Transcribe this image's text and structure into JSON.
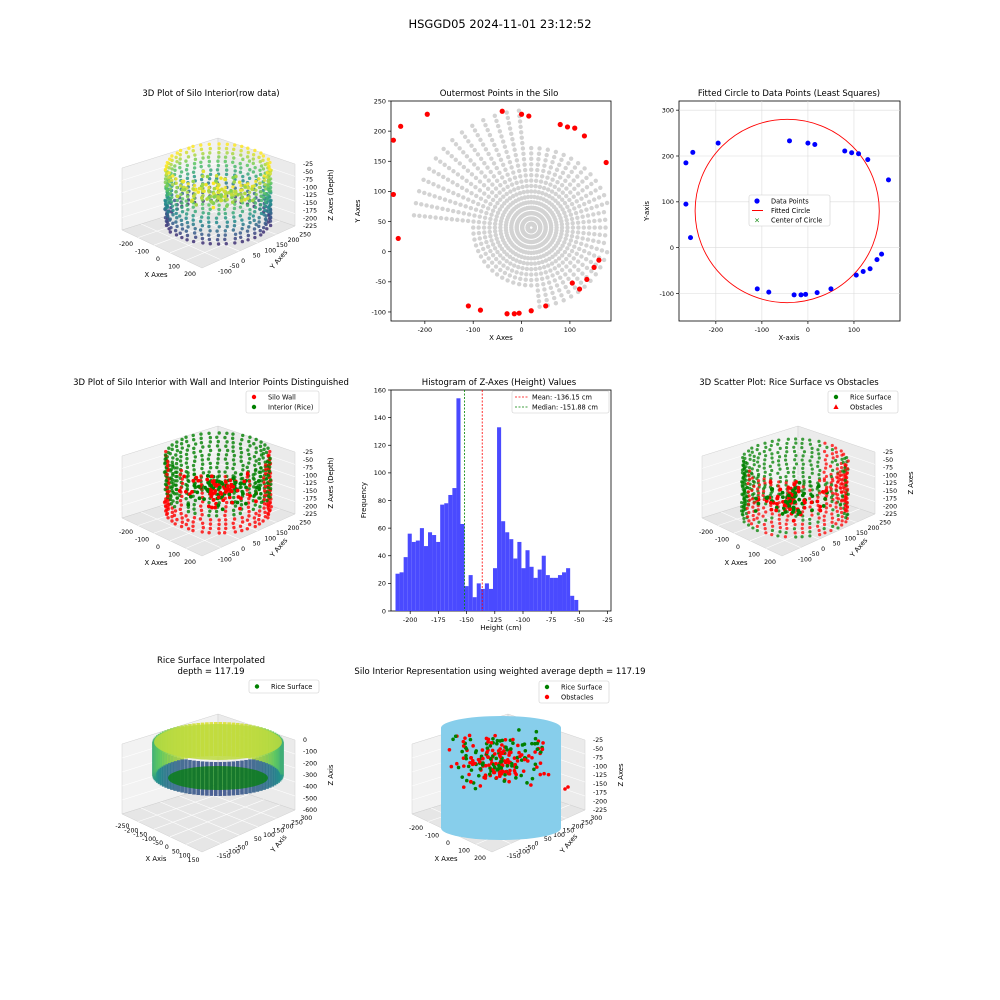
{
  "figure_title": "HSGGD05 2024-11-01 23:12:52",
  "colors": {
    "wall": "#ff0000",
    "interior": "#008000",
    "data_points": "#0000ff",
    "gray_points": "#d3d3d3",
    "hist_bar": "#4a4aff",
    "silo_cylinder": "#87ceeb",
    "viridis_high": "#fde725",
    "viridis_mid": "#21918c",
    "viridis_low": "#440154"
  },
  "chart_data": [
    {
      "id": "p1",
      "type": "scatter3d",
      "title": "3D Plot of Silo Interior(row data)",
      "xlabel": "X Axes",
      "ylabel": "Y Axes",
      "zlabel": "Z Axes (Depth)",
      "xticks": [
        "-200",
        "-100",
        "0",
        "100",
        "200"
      ],
      "yticks": [
        "-100",
        "-50",
        "0",
        "50",
        "100",
        "150",
        "200",
        "250"
      ],
      "zticks": [
        "-25",
        "-50",
        "-75",
        "-100",
        "-125",
        "-150",
        "-175",
        "-200",
        "-225"
      ],
      "colormap": "viridis"
    },
    {
      "id": "p2",
      "type": "scatter",
      "title": "Outermost Points in the Silo",
      "xlabel": "X Axes",
      "ylabel": "Y Axes",
      "xlim": [
        -270,
        185
      ],
      "ylim": [
        -115,
        250
      ],
      "xticks": [
        -200,
        -100,
        0,
        100
      ],
      "yticks": [
        -100,
        -50,
        0,
        50,
        100,
        150,
        200,
        250
      ],
      "outer_points": [
        [
          -265,
          185
        ],
        [
          -250,
          208
        ],
        [
          -265,
          95
        ],
        [
          -255,
          22
        ],
        [
          -195,
          228
        ],
        [
          -110,
          -90
        ],
        [
          -85,
          -97
        ],
        [
          -40,
          233
        ],
        [
          -30,
          -103
        ],
        [
          -15,
          -103
        ],
        [
          -5,
          -102
        ],
        [
          0,
          228
        ],
        [
          15,
          225
        ],
        [
          20,
          -98
        ],
        [
          50,
          -90
        ],
        [
          80,
          211
        ],
        [
          95,
          207
        ],
        [
          110,
          205
        ],
        [
          130,
          192
        ],
        [
          120,
          -62
        ],
        [
          135,
          -46
        ],
        [
          150,
          -26
        ],
        [
          160,
          -14
        ],
        [
          105,
          -52
        ],
        [
          175,
          148
        ]
      ]
    },
    {
      "id": "p3",
      "type": "scatter",
      "title": "Fitted Circle to Data Points (Least Squares)",
      "xlabel": "X-axis",
      "ylabel": "Y-axis",
      "xlim": [
        -280,
        200
      ],
      "ylim": [
        -160,
        320
      ],
      "xticks": [
        -200,
        -100,
        0,
        100
      ],
      "yticks": [
        -100,
        0,
        100,
        200,
        300
      ],
      "legend": [
        "Data Points",
        "Fitted Circle",
        "Center of Circle"
      ],
      "legend_position": "center",
      "circle": {
        "cx": -45,
        "cy": 80,
        "r": 200
      },
      "points": [
        [
          -265,
          185
        ],
        [
          -250,
          208
        ],
        [
          -265,
          95
        ],
        [
          -255,
          22
        ],
        [
          -195,
          228
        ],
        [
          -110,
          -90
        ],
        [
          -85,
          -97
        ],
        [
          -40,
          233
        ],
        [
          -30,
          -103
        ],
        [
          -15,
          -103
        ],
        [
          -5,
          -102
        ],
        [
          0,
          228
        ],
        [
          15,
          225
        ],
        [
          20,
          -98
        ],
        [
          50,
          -90
        ],
        [
          80,
          211
        ],
        [
          95,
          207
        ],
        [
          110,
          205
        ],
        [
          130,
          192
        ],
        [
          105,
          -60
        ],
        [
          120,
          -52
        ],
        [
          135,
          -46
        ],
        [
          150,
          -26
        ],
        [
          160,
          -14
        ],
        [
          175,
          148
        ]
      ]
    },
    {
      "id": "p4",
      "type": "scatter3d",
      "title": "3D Plot of Silo Interior with Wall and Interior Points Distinguished",
      "xlabel": "X Axes",
      "ylabel": "Y Axes",
      "zlabel": "Z Axes (Depth)",
      "xticks": [
        "-200",
        "-100",
        "0",
        "100",
        "200"
      ],
      "yticks": [
        "-100",
        "-50",
        "0",
        "50",
        "100",
        "150",
        "200",
        "250"
      ],
      "zticks": [
        "-25",
        "-50",
        "-75",
        "-100",
        "-125",
        "-150",
        "-175",
        "-200",
        "-225"
      ],
      "legend": [
        "Silo Wall",
        "Interior (Rice)"
      ],
      "legend_position": "upper right"
    },
    {
      "id": "p5",
      "type": "bar",
      "title": "Histogram of Z-Axes (Height) Values",
      "xlabel": "Height (cm)",
      "ylabel": "Frequency",
      "xlim": [
        -217,
        -22
      ],
      "ylim": [
        0,
        160
      ],
      "xticks": [
        -200,
        -175,
        -150,
        -125,
        -100,
        -75,
        -50,
        -25
      ],
      "yticks": [
        0,
        20,
        40,
        60,
        80,
        100,
        120,
        140,
        160
      ],
      "bin_start": -213,
      "bin_width": 3.6,
      "values": [
        27,
        28,
        39,
        56,
        50,
        51,
        60,
        47,
        57,
        55,
        50,
        77,
        78,
        84,
        89,
        154,
        63,
        18,
        26,
        10,
        20,
        16,
        20,
        16,
        31,
        133,
        65,
        57,
        52,
        38,
        50,
        31,
        44,
        32,
        24,
        30,
        40,
        26,
        24,
        24,
        26,
        28,
        31,
        11,
        8
      ],
      "mean": -136.15,
      "median": -151.88,
      "legend": [
        "Mean: -136.15 cm",
        "Median: -151.88 cm"
      ],
      "legend_position": "upper right"
    },
    {
      "id": "p6",
      "type": "scatter3d",
      "title": "3D Scatter Plot: Rice Surface vs Obstacles",
      "xlabel": "X Axes",
      "ylabel": "Y Axes",
      "zlabel": "Z Axes",
      "xticks": [
        "-200",
        "-100",
        "0",
        "100",
        "200"
      ],
      "yticks": [
        "-100",
        "-50",
        "0",
        "50",
        "100",
        "150",
        "200",
        "250"
      ],
      "zticks": [
        "-25",
        "-50",
        "-75",
        "-100",
        "-125",
        "-150",
        "-175",
        "-200",
        "-225"
      ],
      "legend": [
        "Rice Surface",
        "Obstacles"
      ],
      "legend_position": "upper right"
    },
    {
      "id": "p7",
      "type": "surface3d",
      "title": "Rice Surface Interpolated",
      "subtitle": "depth = 117.19",
      "xlabel": "X Axis",
      "ylabel": "Y Axis",
      "zlabel": "Z Axis",
      "xticks": [
        "-250",
        "-200",
        "-150",
        "-100",
        "-50",
        "0",
        "50",
        "100",
        "150"
      ],
      "yticks": [
        "-150",
        "-100",
        "-50",
        "0",
        "50",
        "100",
        "150",
        "200",
        "250",
        "300"
      ],
      "zticks": [
        "0",
        "-100",
        "-200",
        "-300",
        "-400",
        "-500",
        "-600"
      ],
      "legend": [
        "Rice Surface"
      ],
      "legend_position": "upper right"
    },
    {
      "id": "p8",
      "type": "scatter3d",
      "title": "Silo Interior Representation using weighted average depth = 117.19",
      "xlabel": "X Axes",
      "ylabel": "Y Axes",
      "zlabel": "Z Axes",
      "xticks": [
        "-200",
        "-100",
        "0",
        "100",
        "200"
      ],
      "yticks": [
        "-150",
        "-100",
        "-50",
        "0",
        "50",
        "100",
        "150",
        "200",
        "250",
        "300"
      ],
      "zticks": [
        "-25",
        "-50",
        "-75",
        "-100",
        "-125",
        "-150",
        "-175",
        "-200",
        "-225"
      ],
      "legend": [
        "Rice Surface",
        "Obstacles"
      ],
      "legend_position": "upper center"
    }
  ]
}
